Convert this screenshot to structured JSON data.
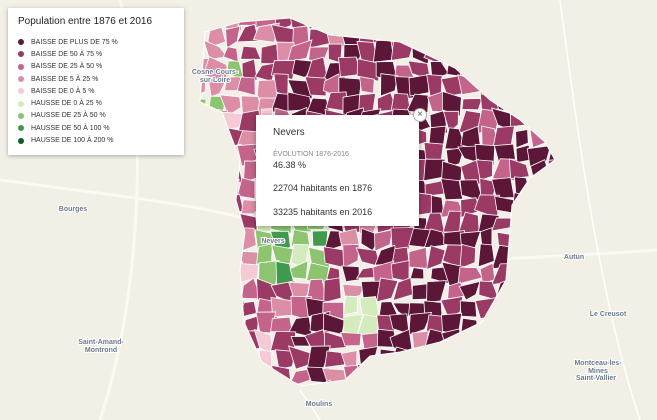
{
  "legend": {
    "title": "Population entre 1876 et 2016",
    "items": [
      {
        "label": "BAISSE DE PLUS DE 75 %",
        "color": "#5c1637"
      },
      {
        "label": "BAISSE DE 50 À 75 %",
        "color": "#9c3a66"
      },
      {
        "label": "BAISSE DE 25 À 50 %",
        "color": "#c4648b"
      },
      {
        "label": "BAISSE DE 5 À 25 %",
        "color": "#dd8ea7"
      },
      {
        "label": "BAISSE DE 0 À 5 %",
        "color": "#f5cad4"
      },
      {
        "label": "HAUSSE DE 0 À 25 %",
        "color": "#d3ebbd"
      },
      {
        "label": "HAUSSE DE 25 À 50 %",
        "color": "#8cc46f"
      },
      {
        "label": "HAUSSE DE 50 À 100 %",
        "color": "#3f9a4d"
      },
      {
        "label": "HAUSSE DE 100 À 200 %",
        "color": "#0e5a2f"
      }
    ]
  },
  "popup": {
    "title": "Nevers",
    "subtitle": "ÉVOLUTION 1876-2016",
    "value": "46.38 %",
    "lines": [
      "22704 habitants en 1876",
      "33235 habitants en 2016"
    ]
  },
  "places": [
    {
      "lines": [
        "Cosne-Cours-",
        "sur-Loire"
      ]
    },
    {
      "lines": [
        "Bourges"
      ]
    },
    {
      "lines": [
        "Nevers"
      ]
    },
    {
      "lines": [
        "Autun"
      ]
    },
    {
      "lines": [
        "Le Creusot"
      ]
    },
    {
      "lines": [
        "Saint-Amand-",
        "Montrond"
      ]
    },
    {
      "lines": [
        "Montceau-les-",
        "Mines"
      ]
    },
    {
      "lines": [
        "Saint-Vallier"
      ]
    },
    {
      "lines": [
        "Moulins"
      ]
    }
  ]
}
